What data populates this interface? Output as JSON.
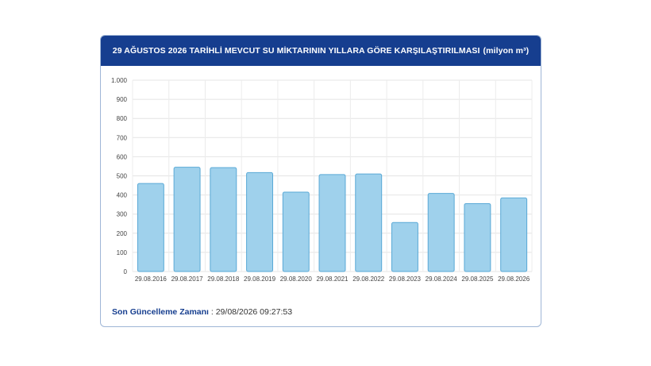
{
  "header": {
    "title_main": "29 AĞUSTOS 2026 TARİHLİ MEVCUT SU MİKTARININ YILLARA GÖRE KARŞILAŞTIRILMASI",
    "title_unit": "(milyon m³)"
  },
  "footer": {
    "label": "Son Güncelleme Zamanı",
    "separator": " : ",
    "value": "29/08/2026 09:27:53"
  },
  "colors": {
    "header_bg": "#163e8f",
    "bar_fill": "#9fd1ec",
    "bar_stroke": "#5aa9d6"
  },
  "chart_data": {
    "type": "bar",
    "categories": [
      "29.08.2016",
      "29.08.2017",
      "29.08.2018",
      "29.08.2019",
      "29.08.2020",
      "29.08.2021",
      "29.08.2022",
      "29.08.2023",
      "29.08.2024",
      "29.08.2025",
      "29.08.2026"
    ],
    "values": [
      460,
      545,
      543,
      517,
      415,
      507,
      510,
      256,
      408,
      355,
      385
    ],
    "ylim": [
      0,
      1000
    ],
    "yticks": [
      0,
      100,
      200,
      300,
      400,
      500,
      600,
      700,
      800,
      900,
      1000
    ],
    "ytick_labels": [
      "0",
      "100",
      "200",
      "300",
      "400",
      "500",
      "600",
      "700",
      "800",
      "900",
      "1.000"
    ],
    "grid": true,
    "legend": "none"
  }
}
